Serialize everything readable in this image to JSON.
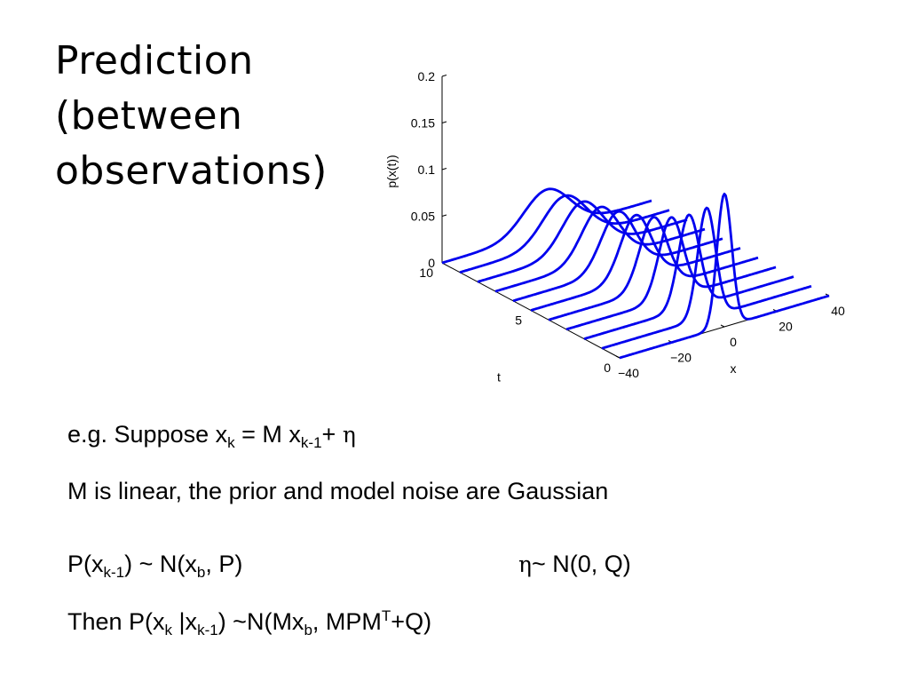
{
  "title_lines": [
    "Prediction",
    "(between",
    "observations)"
  ],
  "chart_data": {
    "type": "line",
    "subtype": "3d-waterfall",
    "title": "",
    "xlabel": "x",
    "ylabel": "t",
    "zlabel": "p(x(t))",
    "x_ticks": [
      "−40",
      "−20",
      "0",
      "20",
      "40"
    ],
    "t_ticks": [
      "0",
      "5",
      "10"
    ],
    "z_ticks": [
      "0",
      "0.05",
      "0.1",
      "0.15",
      "0.2"
    ],
    "xlim": [
      -40,
      40
    ],
    "tlim": [
      0,
      10
    ],
    "zlim": [
      0,
      0.2
    ],
    "line_color": "#0000ee",
    "series": [
      {
        "t": 0,
        "mean": 0,
        "sd": 2.8
      },
      {
        "t": 1,
        "mean": 0,
        "sd": 3.4
      },
      {
        "t": 2,
        "mean": 0,
        "sd": 4.0
      },
      {
        "t": 3,
        "mean": 0,
        "sd": 4.6
      },
      {
        "t": 4,
        "mean": 0,
        "sd": 5.2
      },
      {
        "t": 5,
        "mean": 0,
        "sd": 5.8
      },
      {
        "t": 6,
        "mean": 0,
        "sd": 6.4
      },
      {
        "t": 7,
        "mean": 0,
        "sd": 7.0
      },
      {
        "t": 8,
        "mean": 0,
        "sd": 7.6
      },
      {
        "t": 9,
        "mean": 0,
        "sd": 8.2
      },
      {
        "t": 10,
        "mean": 0,
        "sd": 8.8
      }
    ]
  },
  "line1": {
    "prefix": "e.g. Suppose x",
    "sub1": "k",
    "eq": " = M x",
    "sub2": "k-1",
    "plus": "+ ",
    "eta": "η"
  },
  "line2": {
    "text": "M is linear, the prior and model noise are Gaussian"
  },
  "line3": {
    "a": "P(x",
    "a_sub": "k-1",
    "b": ") ~ N(x",
    "b_sub": "b",
    "c": ", P)",
    "eta": "η",
    "d": "~ N(0, Q)"
  },
  "line4": {
    "a": "Then   P(x",
    "a_sub": "k",
    "b": " |x",
    "b_sub": "k-1",
    "c": ") ~N(Mx",
    "c_sub": "b",
    "d": ", MPM",
    "d_sup": "T",
    "e": "+Q)"
  }
}
